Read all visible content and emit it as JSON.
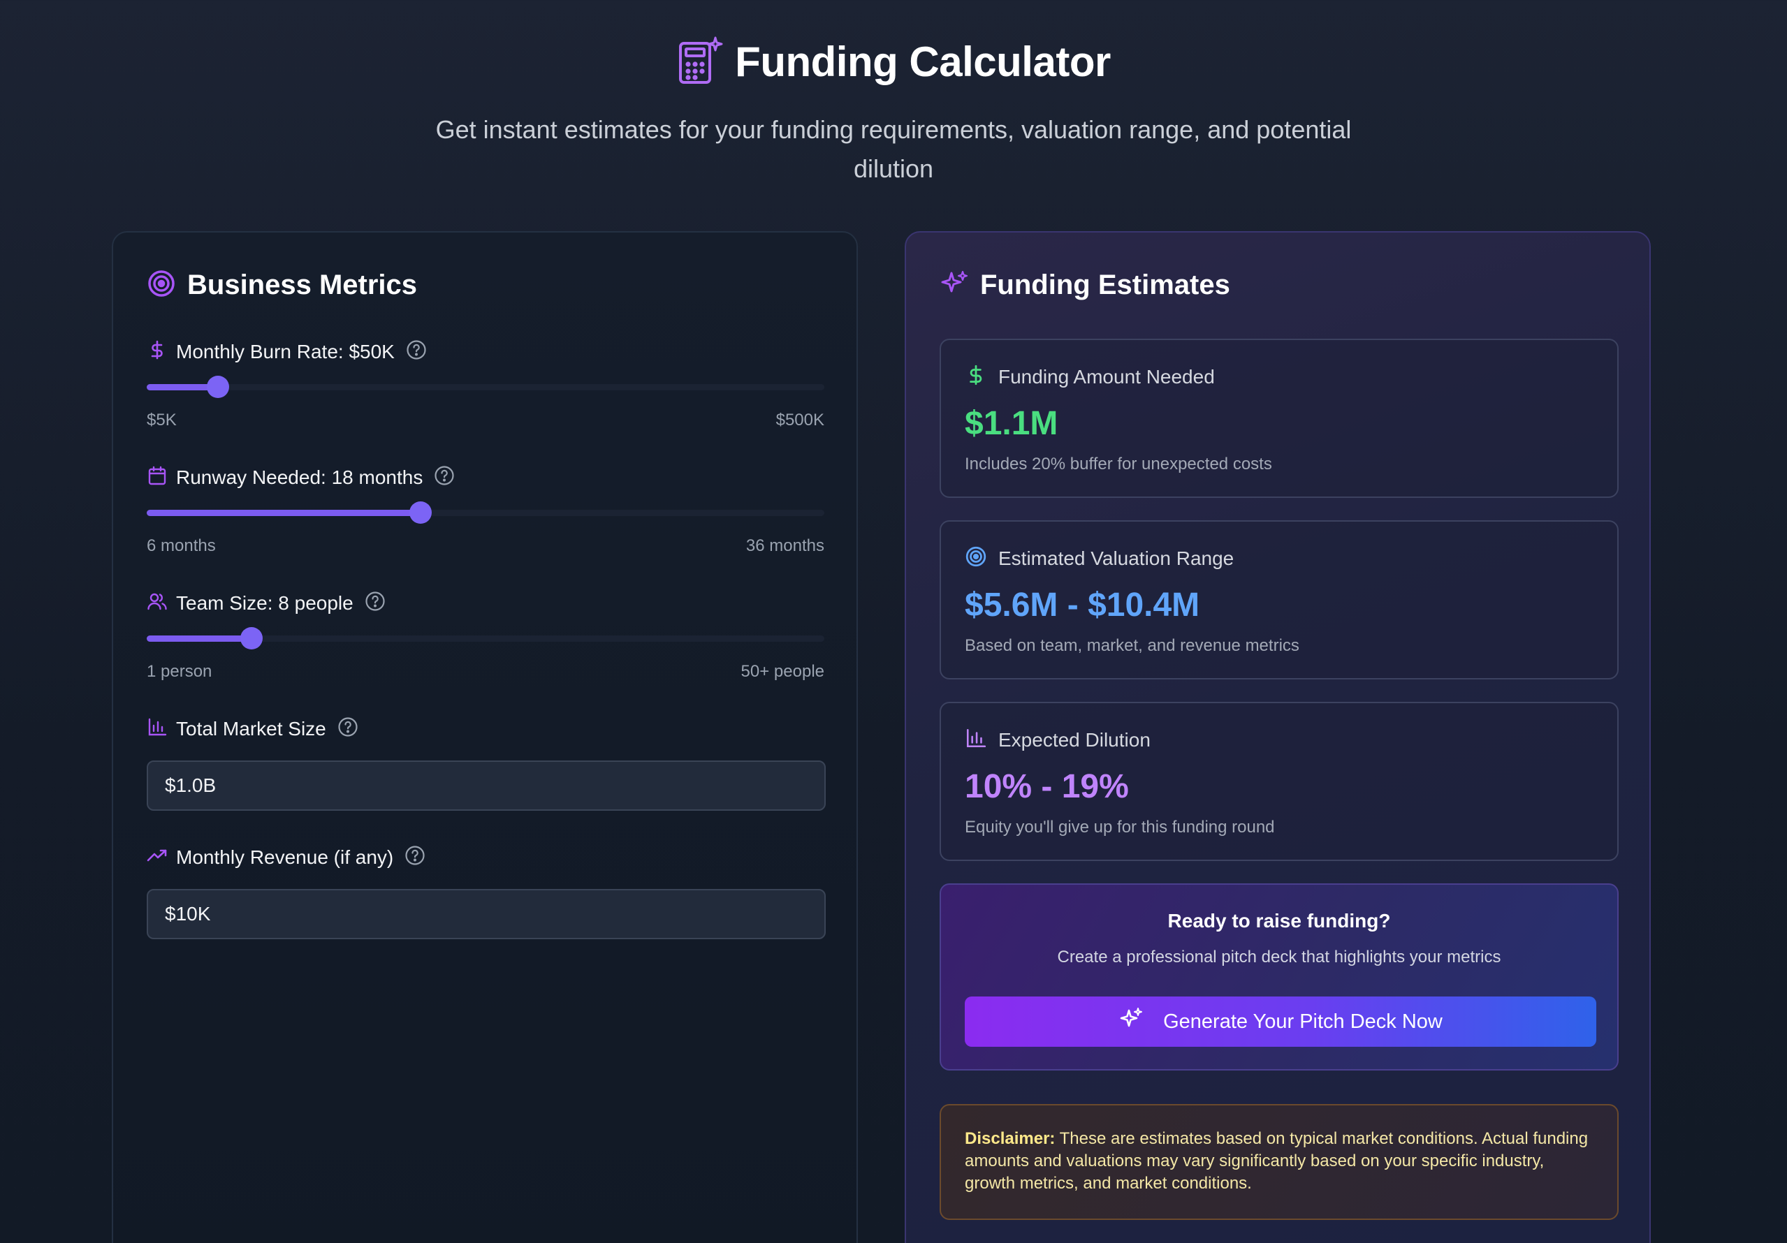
{
  "header": {
    "title": "Funding Calculator",
    "subtitle": "Get instant estimates for your funding requirements, valuation range, and potential dilution",
    "icon": "calculator-sparkle-icon"
  },
  "colors": {
    "accent_purple": "#a855f7",
    "slider_purple": "#7c5cf0",
    "green": "#4ade80",
    "blue": "#60a5fa",
    "violet": "#c084fc",
    "disclaimer_text": "#f4e7a6"
  },
  "metrics": {
    "title": "Business Metrics",
    "icon": "target-icon",
    "burn_rate": {
      "label": "Monthly Burn Rate: $50K",
      "icon": "dollar-icon",
      "value_fraction": 0.105,
      "min_label": "$5K",
      "max_label": "$500K"
    },
    "runway": {
      "label": "Runway Needed: 18 months",
      "icon": "calendar-icon",
      "value_fraction": 0.404,
      "min_label": "6 months",
      "max_label": "36 months"
    },
    "team": {
      "label": "Team Size: 8 people",
      "icon": "users-icon",
      "value_fraction": 0.155,
      "min_label": "1 person",
      "max_label": "50+ people"
    },
    "market": {
      "label": "Total Market Size",
      "icon": "bar-chart-icon",
      "value": "$1.0B"
    },
    "revenue": {
      "label": "Monthly Revenue (if any)",
      "icon": "trending-up-icon",
      "value": "$10K"
    }
  },
  "estimates": {
    "title": "Funding Estimates",
    "icon": "sparkles-icon",
    "funding": {
      "label": "Funding Amount Needed",
      "value": "$1.1M",
      "note": "Includes 20% buffer for unexpected costs"
    },
    "valuation": {
      "label": "Estimated Valuation Range",
      "value": "$5.6M - $10.4M",
      "note": "Based on team, market, and revenue metrics"
    },
    "dilution": {
      "label": "Expected Dilution",
      "value": "10% - 19%",
      "note": "Equity you'll give up for this funding round"
    },
    "cta": {
      "title": "Ready to raise funding?",
      "subtitle": "Create a professional pitch deck that highlights your metrics",
      "button": "Generate Your Pitch Deck Now"
    },
    "disclaimer": {
      "label": "Disclaimer:",
      "text": "These are estimates based on typical market conditions. Actual funding amounts and valuations may vary significantly based on your specific industry, growth metrics, and market conditions."
    }
  }
}
